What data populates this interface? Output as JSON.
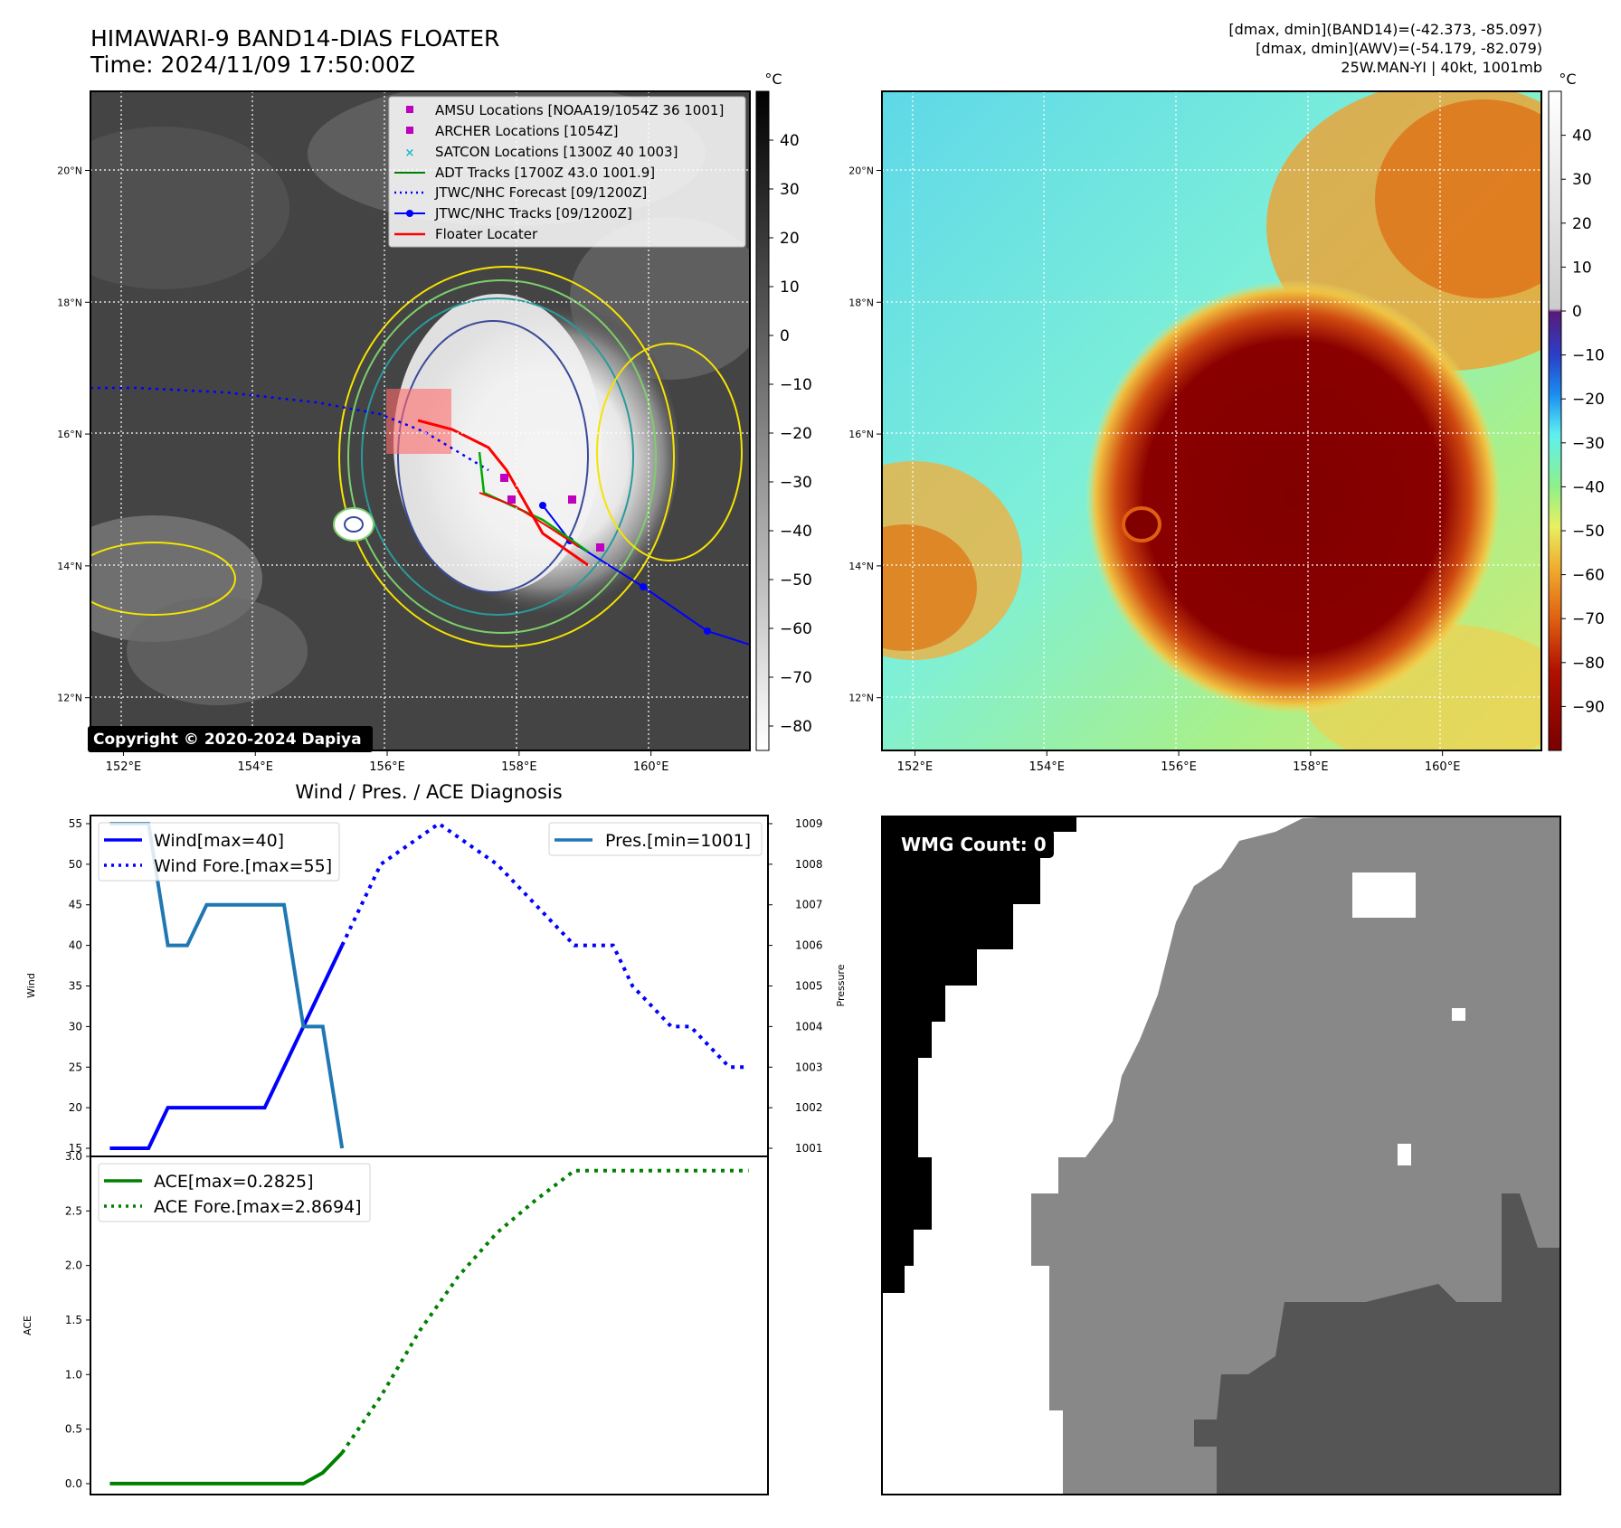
{
  "header": {
    "title_line1": "HIMAWARI-9 BAND14-DIAS FLOATER",
    "title_line2": "Time: 2024/11/09 17:50:00Z",
    "right_line1": "[dmax, dmin](BAND14)=(-42.373, -85.097)",
    "right_line2": "[dmax, dmin](AWV)=(-54.179, -82.079)",
    "right_line3": "25W.MAN-YI | 40kt, 1001mb"
  },
  "map": {
    "lon_ticks": [
      "152°E",
      "154°E",
      "156°E",
      "158°E",
      "160°E"
    ],
    "lat_ticks": [
      "20°N",
      "18°N",
      "16°N",
      "14°N",
      "12°N"
    ],
    "lon_values": [
      152,
      154,
      156,
      158,
      160
    ],
    "lat_values": [
      20,
      18,
      16,
      14,
      12
    ],
    "lon_range": [
      151.5,
      161.5
    ],
    "lat_range": [
      11.2,
      21.2
    ],
    "copyright": "Copyright © 2020-2024 Dapiya",
    "legend": [
      {
        "label": "AMSU Locations [NOAA19/1054Z 36 1001]",
        "marker": "square",
        "color": "#bf00bf"
      },
      {
        "label": "ARCHER Locations [1054Z]",
        "marker": "square",
        "color": "#bf00bf"
      },
      {
        "label": "SATCON Locations [1300Z 40 1003]",
        "marker": "x",
        "color": "#17becf"
      },
      {
        "label": "ADT Tracks [1700Z 43.0 1001.9]",
        "marker": "line",
        "color": "#008000"
      },
      {
        "label": "JTWC/NHC Forecast [09/1200Z]",
        "marker": "dotted",
        "color": "#0000ff"
      },
      {
        "label": "JTWC/NHC Tracks [09/1200Z]",
        "marker": "line-dot",
        "color": "#0000ff"
      },
      {
        "label": "Floater Locater",
        "marker": "line",
        "color": "#ff0000"
      }
    ]
  },
  "colorbar_gray": {
    "unit": "°C",
    "ticks": [
      "40",
      "30",
      "20",
      "10",
      "0",
      "−10",
      "−20",
      "−30",
      "−40",
      "−50",
      "−60",
      "−70",
      "−80"
    ],
    "values": [
      40,
      30,
      20,
      10,
      0,
      -10,
      -20,
      -30,
      -40,
      -50,
      -60,
      -70,
      -80
    ],
    "range": [
      -85,
      50
    ]
  },
  "colorbar_color": {
    "unit": "°C",
    "ticks": [
      "40",
      "30",
      "20",
      "10",
      "0",
      "−10",
      "−20",
      "−30",
      "−40",
      "−50",
      "−60",
      "−70",
      "−80",
      "−90"
    ],
    "values": [
      40,
      30,
      20,
      10,
      0,
      -10,
      -20,
      -30,
      -40,
      -50,
      -60,
      -70,
      -80,
      -90
    ],
    "range": [
      -100,
      50
    ]
  },
  "diag": {
    "title": "Wind / Pres. / ACE Diagnosis",
    "wind_ylabel": "Wind",
    "pres_ylabel": "Pressure",
    "ace_ylabel": "ACE",
    "legend_wind": "Wind[max=40]",
    "legend_wind_fore": "Wind Fore.[max=55]",
    "legend_pres": "Pres.[min=1001]",
    "legend_ace": "ACE[max=0.2825]",
    "legend_ace_fore": "ACE Fore.[max=2.8694]"
  },
  "wmg": {
    "label": "WMG Count: 0"
  },
  "chart_data": [
    {
      "type": "line",
      "title": "Wind / Pres. / ACE Diagnosis",
      "ylabel": "Wind",
      "ylim": [
        14,
        56
      ],
      "yticks": [
        15,
        20,
        25,
        30,
        35,
        40,
        45,
        50,
        55
      ],
      "x_range": [
        -1,
        34
      ],
      "series": [
        {
          "name": "Wind[max=40]",
          "color": "#0000ff",
          "style": "solid",
          "x": [
            0,
            2,
            3,
            8,
            9,
            12
          ],
          "y": [
            15,
            15,
            20,
            20,
            25,
            40
          ]
        },
        {
          "name": "Wind Fore.[max=55]",
          "color": "#0000ff",
          "style": "dotted",
          "x": [
            12,
            14,
            17,
            20,
            22,
            24,
            26,
            27,
            29,
            30,
            32,
            33
          ],
          "y": [
            40,
            50,
            55,
            50,
            45,
            40,
            40,
            35,
            30,
            30,
            25,
            25
          ]
        }
      ]
    },
    {
      "type": "line",
      "ylabel": "Pressure",
      "ylim": [
        1000.8,
        1009.2
      ],
      "yticks": [
        1001,
        1002,
        1003,
        1004,
        1005,
        1006,
        1007,
        1008,
        1009
      ],
      "x_range": [
        -1,
        34
      ],
      "series": [
        {
          "name": "Pres.[min=1001]",
          "color": "#1f77b4",
          "style": "solid",
          "x": [
            0,
            2,
            3,
            4,
            5,
            9,
            10,
            11,
            12
          ],
          "y": [
            1009,
            1009,
            1006,
            1006,
            1007,
            1007,
            1004,
            1004,
            1001
          ]
        }
      ]
    },
    {
      "type": "line",
      "ylabel": "ACE",
      "ylim": [
        -0.1,
        3.0
      ],
      "yticks": [
        0.0,
        0.5,
        1.0,
        1.5,
        2.0,
        2.5,
        3.0
      ],
      "x_range": [
        -1,
        34
      ],
      "series": [
        {
          "name": "ACE[max=0.2825]",
          "color": "#008000",
          "style": "solid",
          "x": [
            0,
            2,
            4,
            6,
            8,
            10,
            11,
            12
          ],
          "y": [
            0,
            0,
            0,
            0,
            0,
            0,
            0.1,
            0.2825
          ]
        },
        {
          "name": "ACE Fore.[max=2.8694]",
          "color": "#008000",
          "style": "dotted",
          "x": [
            12,
            14,
            16,
            18,
            20,
            22,
            24,
            26,
            28,
            30,
            32,
            33
          ],
          "y": [
            0.2825,
            0.8,
            1.4,
            1.9,
            2.3,
            2.6,
            2.8694,
            2.8694,
            2.8694,
            2.8694,
            2.8694,
            2.8694
          ]
        }
      ]
    }
  ]
}
